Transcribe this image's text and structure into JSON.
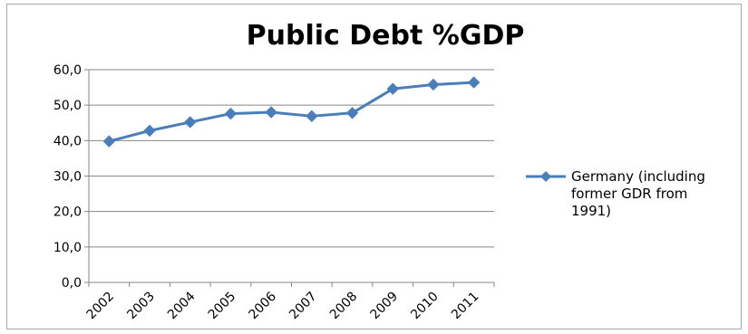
{
  "chart_data": {
    "type": "line",
    "title": "Public Debt %GDP",
    "xlabel": "",
    "ylabel": "",
    "categories": [
      "2002",
      "2003",
      "2004",
      "2005",
      "2006",
      "2007",
      "2008",
      "2009",
      "2010",
      "2011"
    ],
    "series": [
      {
        "name": "Germany (including former GDR from 1991)",
        "values": [
          39.8,
          42.8,
          45.2,
          47.6,
          48.0,
          46.9,
          47.8,
          54.6,
          55.8,
          56.4
        ],
        "color": "#4a7ebb",
        "marker": "diamond"
      }
    ],
    "ylim": [
      0,
      60
    ],
    "ytick_labels": [
      "0,0",
      "10,0",
      "20,0",
      "30,0",
      "40,0",
      "50,0",
      "60,0"
    ],
    "grid": true,
    "legend_position": "right",
    "legend_lines": [
      "Germany (including",
      "former GDR from",
      "1991)"
    ]
  }
}
